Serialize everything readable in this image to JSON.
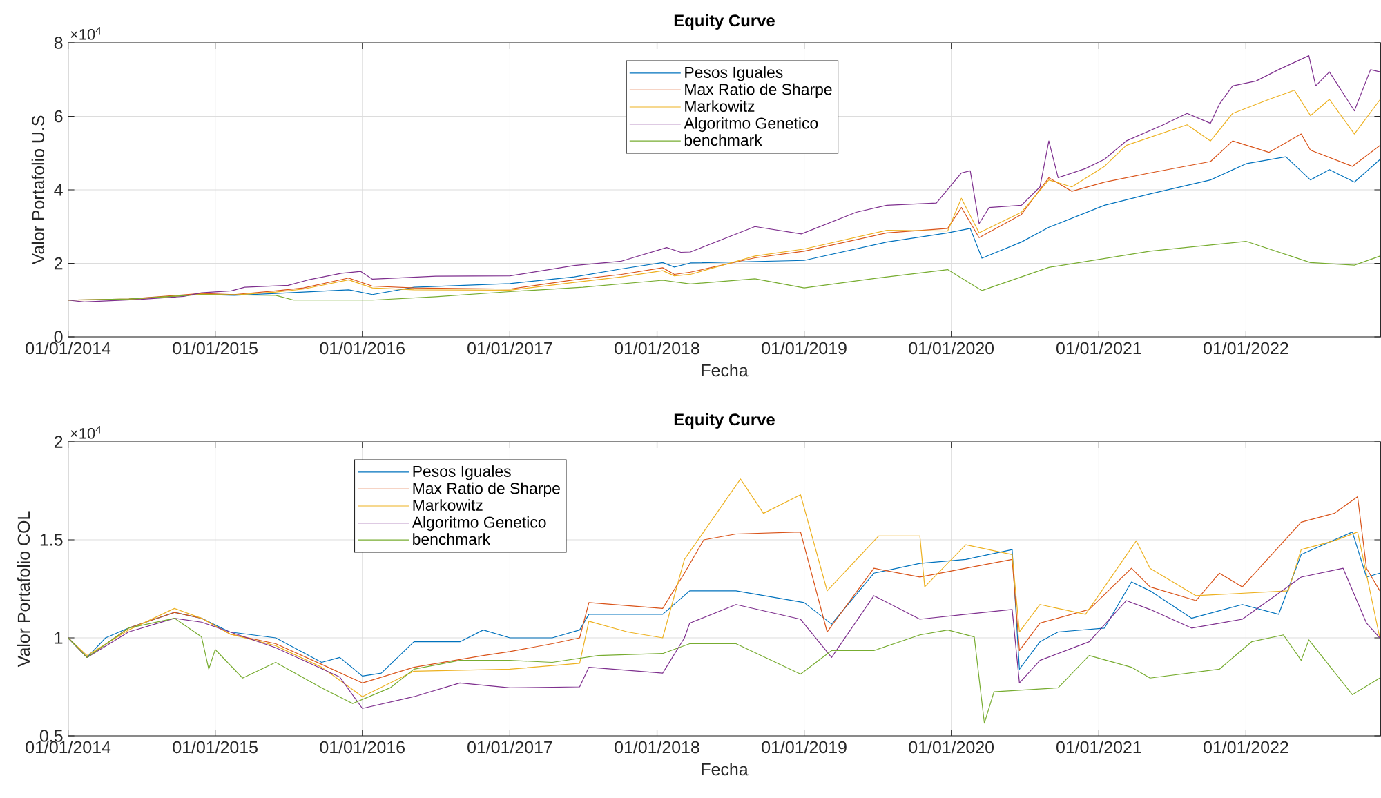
{
  "chart_data": [
    {
      "type": "line",
      "title": "Equity Curve",
      "xlabel": "Fecha",
      "ylabel": "Valor Portafolio U.S",
      "annotations": [
        "×10$^{4}$"
      ],
      "xlim": [
        "2014-01-01",
        "2022-12-01"
      ],
      "ylim": [
        0,
        8
      ],
      "xticks": [
        {
          "value": "2014-01-01",
          "label": "01/01/2014"
        },
        {
          "value": "2015-01-01",
          "label": "01/01/2015"
        },
        {
          "value": "2016-01-01",
          "label": "01/01/2016"
        },
        {
          "value": "2017-01-01",
          "label": "01/01/2017"
        },
        {
          "value": "2018-01-01",
          "label": "01/01/2018"
        },
        {
          "value": "2019-01-01",
          "label": "01/01/2019"
        },
        {
          "value": "2020-01-01",
          "label": "01/01/2020"
        },
        {
          "value": "2021-01-01",
          "label": "01/01/2021"
        },
        {
          "value": "2022-01-01",
          "label": "01/01/2022"
        }
      ],
      "yticks": [
        0,
        2,
        4,
        6,
        8
      ],
      "grid": true,
      "legend": "top",
      "series": [
        {
          "name": "Pesos Iguales",
          "color": "#0072bd",
          "x": [
            "2014-11-28",
            "2015-02-17",
            "2015-05-31",
            "2015-08-08",
            "2015-11-28",
            "2016-01-26",
            "2016-05-08",
            "2017-01-01",
            "2017-06-10",
            "2017-10-05",
            "2018-01-15",
            "2018-02-13",
            "2018-03-25",
            "2019-01-01",
            "2019-07-25",
            "2019-12-23",
            "2020-02-17",
            "2020-03-17",
            "2020-06-23",
            "2020-08-30",
            "2021-01-15",
            "2021-05-08",
            "2021-10-05",
            "2022-01-01",
            "2022-04-10",
            "2022-06-10",
            "2022-07-27",
            "2022-09-27",
            "2022-11-30"
          ],
          "values": [
            1.15,
            1.13,
            1.18,
            1.22,
            1.28,
            1.15,
            1.35,
            1.45,
            1.63,
            1.85,
            2.02,
            1.9,
            2.01,
            2.08,
            2.58,
            2.83,
            2.95,
            2.14,
            2.58,
            2.98,
            3.58,
            3.89,
            4.27,
            4.71,
            4.9,
            4.27,
            4.55,
            4.21,
            4.83
          ]
        },
        {
          "name": "Max Ratio de Sharpe",
          "color": "#d95319",
          "x": [
            "2014-01-01",
            "2014-06-01",
            "2014-11-28",
            "2015-02-17",
            "2015-05-31",
            "2015-08-08",
            "2015-11-28",
            "2016-01-26",
            "2016-05-08",
            "2017-01-01",
            "2017-06-10",
            "2017-10-05",
            "2018-01-15",
            "2018-02-13",
            "2018-03-25",
            "2018-09-01",
            "2019-01-01",
            "2019-07-25",
            "2019-12-23",
            "2020-01-26",
            "2020-03-10",
            "2020-06-23",
            "2020-08-30",
            "2020-10-26",
            "2021-01-15",
            "2021-05-08",
            "2021-10-05",
            "2021-11-29",
            "2022-02-27",
            "2022-05-18",
            "2022-06-10",
            "2022-09-22",
            "2022-11-30"
          ],
          "values": [
            1,
            1.03,
            1.18,
            1.15,
            1.25,
            1.33,
            1.6,
            1.38,
            1.33,
            1.3,
            1.55,
            1.7,
            1.88,
            1.7,
            1.76,
            2.15,
            2.33,
            2.83,
            2.95,
            3.52,
            2.7,
            3.33,
            4.33,
            3.96,
            4.21,
            4.46,
            4.77,
            5.33,
            5.02,
            5.52,
            5.08,
            4.64,
            5.21
          ]
        },
        {
          "name": "Markowitz",
          "color": "#edb120",
          "x": [
            "2014-01-01",
            "2014-06-01",
            "2014-11-28",
            "2015-02-17",
            "2015-05-31",
            "2015-08-08",
            "2015-11-28",
            "2016-01-26",
            "2016-05-08",
            "2017-01-01",
            "2017-06-10",
            "2017-10-05",
            "2018-01-15",
            "2018-02-13",
            "2018-03-25",
            "2018-09-01",
            "2019-01-01",
            "2019-07-25",
            "2019-12-23",
            "2020-01-26",
            "2020-03-10",
            "2020-06-23",
            "2020-08-30",
            "2020-10-26",
            "2021-01-15",
            "2021-03-10",
            "2021-08-08",
            "2021-10-05",
            "2021-11-29",
            "2022-02-27",
            "2022-05-01",
            "2022-06-10",
            "2022-07-27",
            "2022-09-27",
            "2022-11-30"
          ],
          "values": [
            1,
            1.01,
            1.16,
            1.14,
            1.22,
            1.3,
            1.55,
            1.33,
            1.28,
            1.27,
            1.48,
            1.63,
            1.8,
            1.66,
            1.7,
            2.2,
            2.39,
            2.9,
            2.88,
            3.77,
            2.83,
            3.39,
            4.27,
            4.08,
            4.64,
            5.21,
            5.77,
            5.33,
            6.08,
            6.46,
            6.71,
            6.02,
            6.46,
            5.52,
            6.46
          ]
        },
        {
          "name": "Algoritmo Genetico",
          "color": "#7e2f8e",
          "x": [
            "2014-01-01",
            "2014-02-10",
            "2014-07-01",
            "2014-10-15",
            "2014-11-28",
            "2015-02-10",
            "2015-03-15",
            "2015-07-01",
            "2015-08-20",
            "2015-11-10",
            "2015-12-28",
            "2016-01-26",
            "2016-07-01",
            "2017-01-01",
            "2017-06-10",
            "2017-10-05",
            "2018-01-25",
            "2018-03-01",
            "2018-03-25",
            "2018-09-01",
            "2018-12-25",
            "2019-05-10",
            "2019-07-25",
            "2019-11-25",
            "2020-01-26",
            "2020-02-17",
            "2020-03-10",
            "2020-04-04",
            "2020-06-23",
            "2020-08-08",
            "2020-08-30",
            "2020-09-22",
            "2020-11-29",
            "2021-01-15",
            "2021-03-10",
            "2021-06-10",
            "2021-08-08",
            "2021-10-05",
            "2021-10-27",
            "2021-11-29",
            "2022-01-26",
            "2022-03-23",
            "2022-06-06",
            "2022-06-23",
            "2022-07-27",
            "2022-09-27",
            "2022-11-06",
            "2022-11-30"
          ],
          "values": [
            1,
            0.95,
            1.02,
            1.1,
            1.2,
            1.25,
            1.35,
            1.4,
            1.55,
            1.73,
            1.78,
            1.57,
            1.65,
            1.66,
            1.94,
            2.06,
            2.43,
            2.3,
            2.31,
            3,
            2.8,
            3.39,
            3.58,
            3.64,
            4.46,
            4.52,
            3.08,
            3.52,
            3.58,
            4.08,
            5.33,
            4.33,
            4.58,
            4.83,
            5.33,
            5.77,
            6.08,
            5.81,
            6.33,
            6.83,
            6.96,
            7.27,
            7.65,
            6.83,
            7.21,
            6.15,
            7.27,
            7.21
          ]
        },
        {
          "name": "benchmark",
          "color": "#77ac30",
          "x": [
            "2014-01-01",
            "2014-06-01",
            "2014-11-28",
            "2015-05-31",
            "2015-07-15",
            "2016-01-26",
            "2016-07-01",
            "2017-01-01",
            "2017-07-01",
            "2018-01-15",
            "2018-03-25",
            "2018-09-01",
            "2019-01-01",
            "2019-07-01",
            "2019-12-23",
            "2020-03-17",
            "2020-08-30",
            "2021-05-08",
            "2022-01-01",
            "2022-06-10",
            "2022-09-27",
            "2022-11-30"
          ],
          "values": [
            1,
            1.03,
            1.15,
            1.13,
            1,
            1,
            1.09,
            1.23,
            1.35,
            1.54,
            1.44,
            1.58,
            1.33,
            1.6,
            1.83,
            1.26,
            1.89,
            2.33,
            2.6,
            2.02,
            1.95,
            2.2
          ]
        }
      ]
    },
    {
      "type": "line",
      "title": "Equity Curve",
      "xlabel": "Fecha",
      "ylabel": "Valor Portafolio COL",
      "annotations": [
        "×10$^{4}$"
      ],
      "xlim": [
        "2014-01-01",
        "2022-12-01"
      ],
      "ylim": [
        0.5,
        2
      ],
      "xticks": [
        {
          "value": "2014-01-01",
          "label": "01/01/2014"
        },
        {
          "value": "2015-01-01",
          "label": "01/01/2015"
        },
        {
          "value": "2016-01-01",
          "label": "01/01/2016"
        },
        {
          "value": "2017-01-01",
          "label": "01/01/2017"
        },
        {
          "value": "2018-01-01",
          "label": "01/01/2018"
        },
        {
          "value": "2019-01-01",
          "label": "01/01/2019"
        },
        {
          "value": "2020-01-01",
          "label": "01/01/2020"
        },
        {
          "value": "2021-01-01",
          "label": "01/01/2021"
        },
        {
          "value": "2022-01-01",
          "label": "01/01/2022"
        }
      ],
      "yticks": [
        0.5,
        1,
        1.5,
        2
      ],
      "grid": true,
      "legend": "top left",
      "series": [
        {
          "name": "Pesos Iguales",
          "color": "#0072bd",
          "x": [
            "2014-01-01",
            "2014-02-17",
            "2014-04-04",
            "2014-05-31",
            "2014-09-22",
            "2014-11-28",
            "2015-02-06",
            "2015-05-31",
            "2015-09-22",
            "2015-11-06",
            "2016-01-01",
            "2016-02-17",
            "2016-05-08",
            "2016-08-30",
            "2016-10-27",
            "2017-01-01",
            "2017-04-16",
            "2017-06-23",
            "2017-07-16",
            "2018-01-15",
            "2018-03-23",
            "2018-07-16",
            "2019-01-01",
            "2019-03-10",
            "2019-06-23",
            "2019-10-15",
            "2020-02-06",
            "2020-05-31",
            "2020-06-18",
            "2020-08-08",
            "2020-09-22",
            "2021-01-15",
            "2021-03-23",
            "2021-05-08",
            "2021-08-19",
            "2021-12-23",
            "2022-03-23",
            "2022-05-18",
            "2022-09-22",
            "2022-10-27",
            "2022-11-29"
          ],
          "values": [
            1,
            0.9,
            1,
            1.05,
            1.13,
            1.1,
            1.03,
            1,
            0.875,
            0.9,
            0.805,
            0.82,
            0.98,
            0.98,
            1.04,
            1,
            1,
            1.04,
            1.12,
            1.12,
            1.24,
            1.24,
            1.18,
            1.07,
            1.33,
            1.38,
            1.4,
            1.45,
            0.84,
            0.98,
            1.03,
            1.05,
            1.285,
            1.24,
            1.1,
            1.17,
            1.12,
            1.425,
            1.54,
            1.31,
            1.33
          ]
        },
        {
          "name": "Max Ratio de Sharpe",
          "color": "#d95319",
          "x": [
            "2014-01-01",
            "2014-02-17",
            "2014-05-31",
            "2014-09-22",
            "2014-11-28",
            "2015-02-06",
            "2015-05-31",
            "2015-09-22",
            "2016-01-01",
            "2016-05-08",
            "2016-10-27",
            "2017-01-01",
            "2017-04-16",
            "2017-06-23",
            "2017-07-16",
            "2018-01-15",
            "2018-03-10",
            "2018-04-27",
            "2018-07-16",
            "2018-12-23",
            "2019-02-27",
            "2019-06-23",
            "2019-10-15",
            "2020-02-06",
            "2020-05-31",
            "2020-06-18",
            "2020-08-08",
            "2020-12-08",
            "2021-03-23",
            "2021-05-08",
            "2021-08-30",
            "2021-10-27",
            "2021-12-23",
            "2022-05-18",
            "2022-08-08",
            "2022-10-05",
            "2022-10-27",
            "2022-11-29"
          ],
          "values": [
            1,
            0.9,
            1.05,
            1.13,
            1.1,
            1.02,
            0.97,
            0.865,
            0.77,
            0.85,
            0.91,
            0.93,
            0.97,
            1,
            1.18,
            1.15,
            1.33,
            1.5,
            1.53,
            1.54,
            1.03,
            1.355,
            1.31,
            1.355,
            1.4,
            0.935,
            1.075,
            1.145,
            1.355,
            1.26,
            1.19,
            1.33,
            1.26,
            1.59,
            1.635,
            1.72,
            1.355,
            1.24
          ]
        },
        {
          "name": "Markowitz",
          "color": "#edb120",
          "x": [
            "2014-01-01",
            "2014-02-17",
            "2014-05-31",
            "2014-09-22",
            "2014-11-28",
            "2015-02-06",
            "2015-05-31",
            "2015-09-22",
            "2016-01-01",
            "2016-05-08",
            "2017-01-01",
            "2017-06-23",
            "2017-07-16",
            "2017-10-20",
            "2018-01-15",
            "2018-03-10",
            "2018-07-27",
            "2018-09-22",
            "2018-12-23",
            "2019-02-27",
            "2019-07-05",
            "2019-10-15",
            "2019-10-27",
            "2020-02-06",
            "2020-05-31",
            "2020-06-18",
            "2020-08-08",
            "2020-11-29",
            "2021-04-04",
            "2021-05-08",
            "2021-08-30",
            "2022-04-16",
            "2022-05-18",
            "2022-08-08",
            "2022-10-05",
            "2022-11-29"
          ],
          "values": [
            1,
            0.91,
            1.04,
            1.15,
            1.1,
            1.02,
            0.96,
            0.85,
            0.7,
            0.83,
            0.84,
            0.87,
            1.085,
            1.03,
            1,
            1.4,
            1.81,
            1.635,
            1.73,
            1.24,
            1.52,
            1.52,
            1.26,
            1.475,
            1.425,
            1.03,
            1.17,
            1.12,
            1.495,
            1.355,
            1.215,
            1.24,
            1.45,
            1.495,
            1.54,
            1
          ]
        },
        {
          "name": "Algoritmo Genetico",
          "color": "#7e2f8e",
          "x": [
            "2014-01-01",
            "2014-02-17",
            "2014-05-31",
            "2014-09-22",
            "2014-11-28",
            "2015-05-31",
            "2015-11-06",
            "2016-01-01",
            "2016-05-08",
            "2016-08-30",
            "2017-01-01",
            "2017-06-23",
            "2017-07-16",
            "2018-01-15",
            "2018-03-10",
            "2018-03-23",
            "2018-07-16",
            "2018-12-23",
            "2019-03-10",
            "2019-06-23",
            "2019-10-15",
            "2020-02-06",
            "2020-05-31",
            "2020-06-18",
            "2020-08-08",
            "2020-12-08",
            "2021-03-10",
            "2021-05-08",
            "2021-08-19",
            "2021-12-23",
            "2022-05-18",
            "2022-08-30",
            "2022-10-27",
            "2022-11-29"
          ],
          "values": [
            1,
            0.9,
            1.03,
            1.1,
            1.08,
            0.95,
            0.8,
            0.64,
            0.7,
            0.77,
            0.745,
            0.75,
            0.85,
            0.82,
            1,
            1.075,
            1.17,
            1.095,
            0.9,
            1.215,
            1.095,
            1.12,
            1.145,
            0.77,
            0.885,
            0.98,
            1.19,
            1.145,
            1.05,
            1.095,
            1.31,
            1.355,
            1.075,
            1
          ]
        },
        {
          "name": "benchmark",
          "color": "#77ac30",
          "x": [
            "2014-01-01",
            "2014-02-17",
            "2014-05-31",
            "2014-09-22",
            "2014-11-28",
            "2014-12-16",
            "2015-01-01",
            "2015-03-10",
            "2015-05-31",
            "2015-09-22",
            "2015-12-08",
            "2016-03-10",
            "2016-05-08",
            "2016-08-30",
            "2017-01-01",
            "2017-04-16",
            "2017-08-08",
            "2018-01-15",
            "2018-03-23",
            "2018-07-16",
            "2018-12-23",
            "2019-03-10",
            "2019-06-23",
            "2019-10-15",
            "2019-12-23",
            "2020-02-27",
            "2020-03-23",
            "2020-04-16",
            "2020-09-22",
            "2020-12-08",
            "2021-03-23",
            "2021-05-08",
            "2021-10-27",
            "2022-01-15",
            "2022-04-04",
            "2022-05-18",
            "2022-06-06",
            "2022-09-22",
            "2022-11-29"
          ],
          "values": [
            1,
            0.9,
            1.05,
            1.1,
            1.005,
            0.84,
            0.94,
            0.795,
            0.875,
            0.745,
            0.665,
            0.745,
            0.84,
            0.885,
            0.885,
            0.875,
            0.91,
            0.92,
            0.97,
            0.97,
            0.815,
            0.935,
            0.935,
            1.015,
            1.04,
            1.005,
            0.565,
            0.725,
            0.745,
            0.91,
            0.85,
            0.795,
            0.84,
            0.98,
            1.015,
            0.885,
            0.99,
            0.71,
            0.795
          ]
        }
      ]
    }
  ]
}
